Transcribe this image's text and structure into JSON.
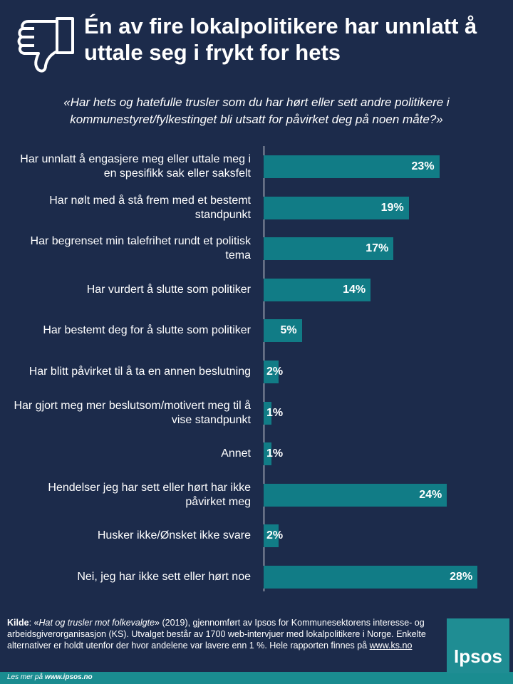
{
  "chart_data": {
    "type": "bar",
    "title": "Én av fire lokalpolitikere har unnlatt å uttale seg i frykt for hets",
    "subtitle": "«Har hets og hatefulle trusler som du har hørt eller sett andre politikere i kommunestyret/fylkestinget bli utsatt for påvirket deg på noen måte?»",
    "categories": [
      "Har unnlatt å engasjere meg eller uttale meg i en spesifikk sak eller saksfelt",
      "Har nølt med å stå frem med et bestemt standpunkt",
      "Har begrenset min talefrihet rundt et politisk tema",
      "Har vurdert å slutte som politiker",
      "Har bestemt deg for å slutte som politiker",
      "Har blitt påvirket til å ta en annen beslutning",
      "Har gjort meg mer beslutsom/motivert meg til å vise standpunkt",
      "Annet",
      "Hendelser jeg har sett eller hørt har ikke påvirket meg",
      "Husker ikke/Ønsket ikke svare",
      "Nei, jeg har ikke sett eller hørt noe"
    ],
    "values": [
      23,
      19,
      17,
      14,
      5,
      2,
      1,
      1,
      24,
      2,
      28
    ],
    "value_labels": [
      "23%",
      "19%",
      "17%",
      "14%",
      "5%",
      "2%",
      "1%",
      "1%",
      "24%",
      "2%",
      "28%"
    ],
    "color": "#117c86",
    "source": {
      "label": "Kilde",
      "text1": ": «",
      "report": "Hat og trusler mot folkevalgte",
      "text2": "» (2019), gjennomført av Ipsos for Kommunesektorens interesse- og arbeidsgiverorganisasjon (KS). Utvalget består av 1700 web-intervjuer med lokalpolitikere i Norge. Enkelte alternativer er holdt utenfor der hvor andelene var lavere enn 1 %. Hele rapporten finnes på ",
      "link": "www.ks.no"
    },
    "more": {
      "text": "Les mer på ",
      "link": "www.ipsos.no"
    },
    "logo": "Ipsos"
  }
}
